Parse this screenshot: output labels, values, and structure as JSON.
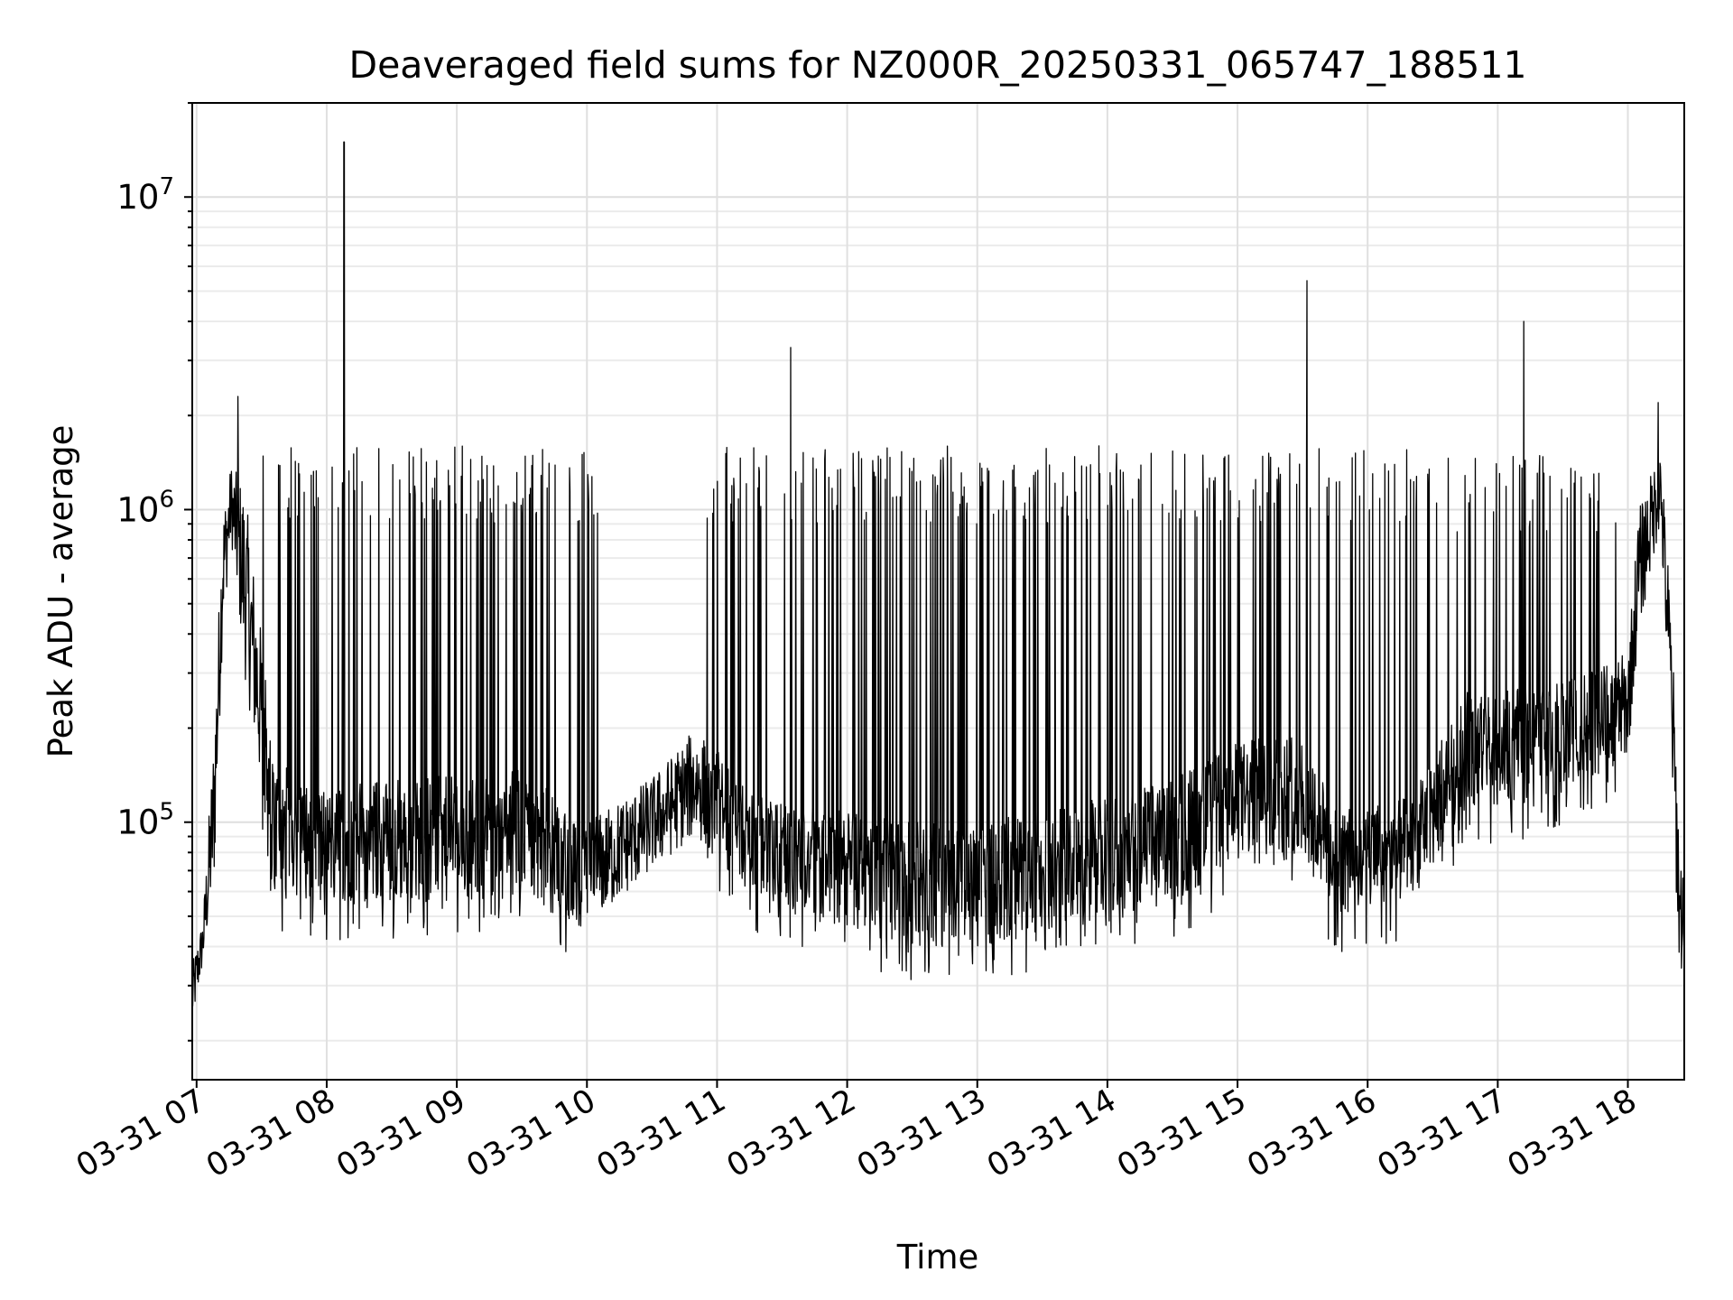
{
  "chart_data": {
    "type": "line",
    "title": "Deaveraged field sums for NZ000R_20250331_065747_188511",
    "xlabel": "Time",
    "ylabel": "Peak ADU - average",
    "yscale": "log",
    "xlim": [
      "2025-03-31T06:58:00",
      "2025-03-31T18:26:00"
    ],
    "ylim": [
      15000,
      20000000
    ],
    "grid": true,
    "legend": "none",
    "x_ticks": [
      "03-31 07",
      "03-31 08",
      "03-31 09",
      "03-31 10",
      "03-31 11",
      "03-31 12",
      "03-31 13",
      "03-31 14",
      "03-31 15",
      "03-31 16",
      "03-31 17",
      "03-31 18"
    ],
    "y_ticks": [
      {
        "value": 100000,
        "base": "10",
        "exp": "5"
      },
      {
        "value": 1000000,
        "base": "10",
        "exp": "6"
      },
      {
        "value": 10000000,
        "base": "10",
        "exp": "7"
      }
    ],
    "line_color": "#000000",
    "spikes": [
      {
        "x": "2025-03-31T08:08:00",
        "y": 15000000
      },
      {
        "x": "2025-03-31T11:34:00",
        "y": 3300000
      },
      {
        "x": "2025-03-31T15:32:00",
        "y": 5400000
      },
      {
        "x": "2025-03-31T17:12:00",
        "y": 4000000
      },
      {
        "x": "2025-03-31T07:19:00",
        "y": 2300000
      },
      {
        "x": "2025-03-31T18:14:00",
        "y": 2200000
      }
    ],
    "envelope": [
      {
        "t": "06:58",
        "lo": 22000,
        "hi": 35000
      },
      {
        "t": "07:03",
        "lo": 35000,
        "hi": 50000
      },
      {
        "t": "07:08",
        "lo": 60000,
        "hi": 200000
      },
      {
        "t": "07:12",
        "lo": 400000,
        "hi": 1000000
      },
      {
        "t": "07:16",
        "lo": 800000,
        "hi": 1400000
      },
      {
        "t": "07:22",
        "lo": 300000,
        "hi": 1200000
      },
      {
        "t": "07:30",
        "lo": 120000,
        "hi": 400000
      },
      {
        "t": "07:35",
        "lo": 60000,
        "hi": 160000
      },
      {
        "t": "08:00",
        "lo": 55000,
        "hi": 130000
      },
      {
        "t": "08:30",
        "lo": 55000,
        "hi": 140000
      },
      {
        "t": "09:00",
        "lo": 55000,
        "hi": 140000
      },
      {
        "t": "09:30",
        "lo": 60000,
        "hi": 150000
      },
      {
        "t": "10:00",
        "lo": 45000,
        "hi": 100000
      },
      {
        "t": "10:30",
        "lo": 70000,
        "hi": 140000
      },
      {
        "t": "10:50",
        "lo": 90000,
        "hi": 200000
      },
      {
        "t": "11:20",
        "lo": 55000,
        "hi": 120000
      },
      {
        "t": "12:00",
        "lo": 45000,
        "hi": 110000
      },
      {
        "t": "12:30",
        "lo": 40000,
        "hi": 100000
      },
      {
        "t": "13:00",
        "lo": 40000,
        "hi": 100000
      },
      {
        "t": "13:30",
        "lo": 45000,
        "hi": 110000
      },
      {
        "t": "14:00",
        "lo": 50000,
        "hi": 120000
      },
      {
        "t": "14:30",
        "lo": 55000,
        "hi": 140000
      },
      {
        "t": "15:00",
        "lo": 75000,
        "hi": 180000
      },
      {
        "t": "15:30",
        "lo": 80000,
        "hi": 200000
      },
      {
        "t": "15:45",
        "lo": 50000,
        "hi": 110000
      },
      {
        "t": "16:20",
        "lo": 55000,
        "hi": 120000
      },
      {
        "t": "16:45",
        "lo": 110000,
        "hi": 260000
      },
      {
        "t": "17:30",
        "lo": 120000,
        "hi": 280000
      },
      {
        "t": "18:00",
        "lo": 160000,
        "hi": 350000
      },
      {
        "t": "18:05",
        "lo": 400000,
        "hi": 1000000
      },
      {
        "t": "18:15",
        "lo": 900000,
        "hi": 1600000
      },
      {
        "t": "18:20",
        "lo": 150000,
        "hi": 500000
      },
      {
        "t": "18:24",
        "lo": 30000,
        "hi": 80000
      },
      {
        "t": "18:26",
        "lo": 40000,
        "hi": 75000
      }
    ],
    "dense_regions": [
      {
        "start": "07:30",
        "end": "10:05",
        "peak": 1600000
      },
      {
        "start": "10:55",
        "end": "13:55",
        "peak": 1600000
      },
      {
        "start": "13:55",
        "end": "16:30",
        "peak": 1600000
      },
      {
        "start": "16:30",
        "end": "17:55",
        "peak": 1500000
      }
    ]
  }
}
